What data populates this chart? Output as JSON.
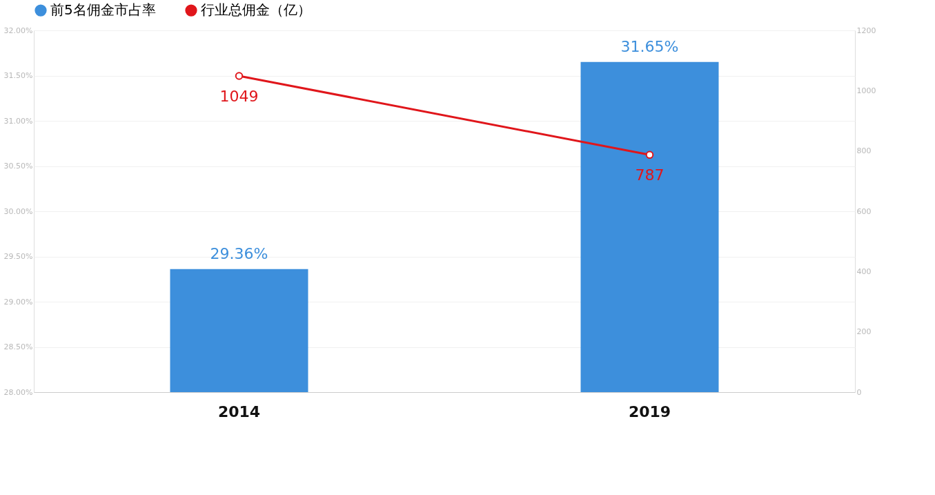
{
  "chart_data": {
    "type": "bar",
    "categories": [
      "2014",
      "2019"
    ],
    "series": [
      {
        "name": "前5名佣金市占率",
        "color": "#3d8fdc",
        "values": [
          29.36,
          31.65
        ],
        "value_labels": [
          "29.36%",
          "31.65%"
        ]
      },
      {
        "name": "行业总佣金（亿）",
        "type": "line",
        "axis": "y2",
        "color": "#e0161b",
        "values": [
          1049,
          787
        ],
        "value_labels": [
          "1049",
          "787"
        ],
        "marker": "circle"
      }
    ],
    "ylim": [
      28,
      32
    ],
    "yticks": [
      {
        "value": 28,
        "label": "28.00%"
      },
      {
        "value": 28.5,
        "label": "28.50%"
      },
      {
        "value": 29,
        "label": "29.00%"
      },
      {
        "value": 29.5,
        "label": "29.50%"
      },
      {
        "value": 30,
        "label": "30.00%"
      },
      {
        "value": 30.5,
        "label": "30.50%"
      },
      {
        "value": 31,
        "label": "31.00%"
      },
      {
        "value": 31.5,
        "label": "31.50%"
      },
      {
        "value": 32,
        "label": "32.00%"
      }
    ],
    "y2lim": [
      0,
      1200
    ],
    "y2ticks": [
      0,
      200,
      400,
      600,
      800,
      1000,
      1200
    ],
    "grid": "y",
    "legend": "top"
  }
}
